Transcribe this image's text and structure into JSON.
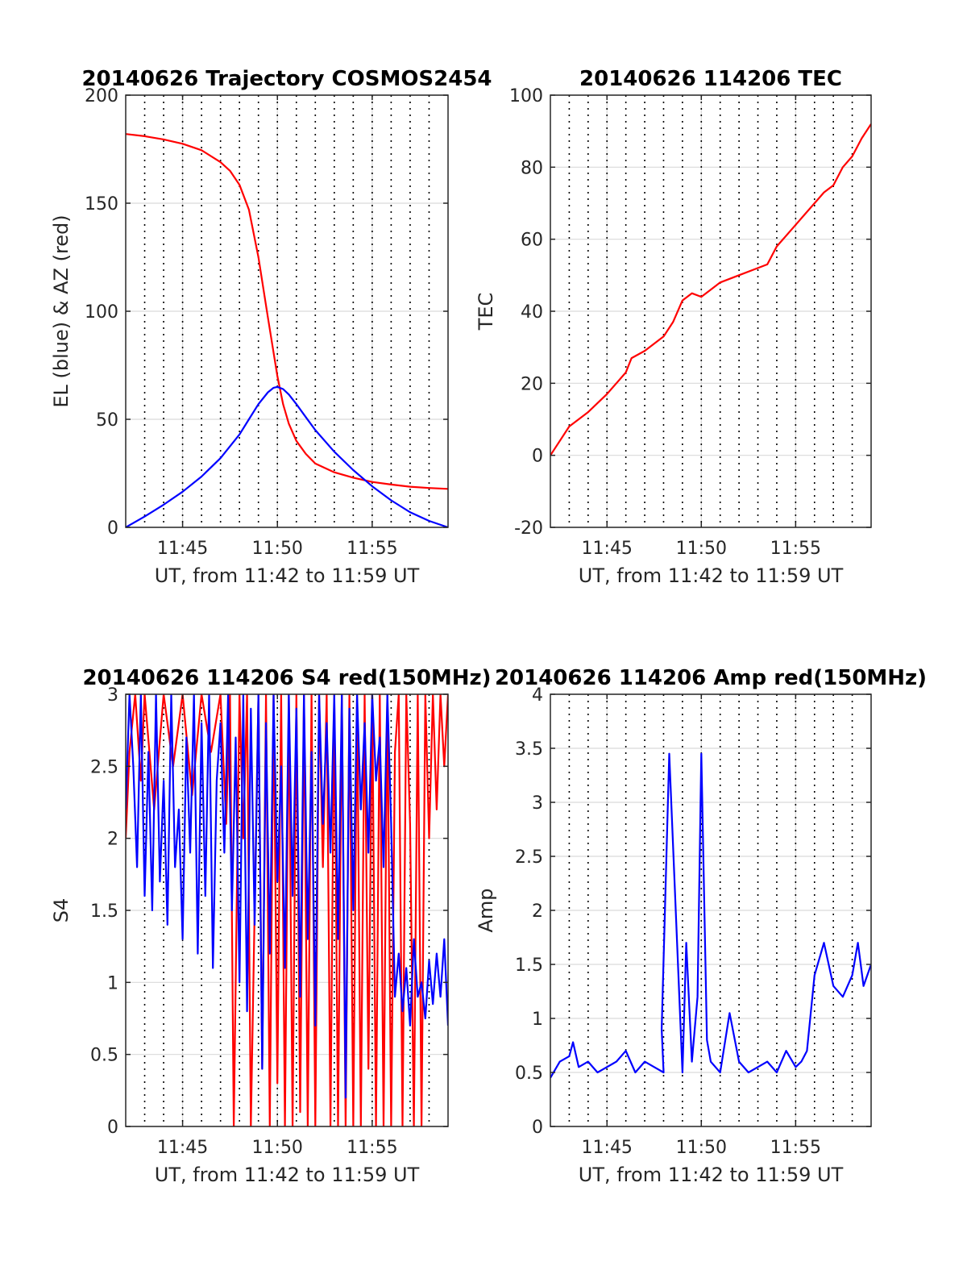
{
  "colors": {
    "red": "#ff0000",
    "blue": "#0000ff",
    "grid": "#d9d9d9",
    "axis": "#262626"
  },
  "chart_data": [
    {
      "type": "line",
      "title": "20140626 Trajectory COSMOS2454",
      "xlabel": "UT, from 11:42 to 11:59 UT",
      "ylabel": "EL (blue) & AZ (red)",
      "xlim": [
        0,
        17
      ],
      "ylim": [
        0,
        200
      ],
      "xticks": [
        3,
        8,
        13
      ],
      "xtick_labels": [
        "11:45",
        "11:50",
        "11:55"
      ],
      "yticks": [
        0,
        50,
        100,
        150,
        200
      ],
      "ytick_labels": [
        "0",
        "50",
        "100",
        "150",
        "200"
      ],
      "grid": true,
      "series": [
        {
          "color": "red",
          "x": [
            0,
            1,
            2,
            3,
            4,
            5,
            5.5,
            6,
            6.5,
            7,
            7.5,
            8,
            8.3,
            8.6,
            9,
            9.5,
            10,
            11,
            12,
            13,
            14,
            15,
            16,
            17
          ],
          "y": [
            182,
            181,
            179.5,
            177.5,
            174.5,
            169,
            165,
            158.5,
            147,
            125,
            97,
            70,
            57,
            48,
            40,
            34,
            29.5,
            25.5,
            23,
            21,
            19.8,
            18.8,
            18.2,
            17.8
          ]
        },
        {
          "color": "blue",
          "x": [
            0,
            1,
            2,
            3,
            4,
            5,
            6,
            6.5,
            7,
            7.5,
            7.8,
            8,
            8.3,
            8.6,
            9,
            9.5,
            10,
            11,
            12,
            13,
            14,
            15,
            16,
            17
          ],
          "y": [
            0,
            5,
            10.5,
            16.5,
            23.5,
            32,
            43,
            50,
            57,
            62.5,
            64.6,
            65,
            64,
            61.5,
            57,
            51,
            45,
            35,
            26.5,
            19,
            12.5,
            7,
            3,
            0
          ]
        }
      ]
    },
    {
      "type": "line",
      "title": "20140626 114206 TEC",
      "xlabel": "UT, from 11:42 to 11:59 UT",
      "ylabel": "TEC",
      "xlim": [
        0,
        17
      ],
      "ylim": [
        -20,
        100
      ],
      "xticks": [
        3,
        8,
        13
      ],
      "xtick_labels": [
        "11:45",
        "11:50",
        "11:55"
      ],
      "yticks": [
        -20,
        0,
        20,
        40,
        60,
        80,
        100
      ],
      "ytick_labels": [
        "-20",
        "0",
        "20",
        "40",
        "60",
        "80",
        "100"
      ],
      "grid": true,
      "series": [
        {
          "color": "red",
          "x": [
            0,
            1,
            2,
            3,
            3.5,
            4,
            4.3,
            5,
            6,
            6.5,
            7,
            7.5,
            8,
            8.5,
            9,
            10,
            11,
            11.5,
            12,
            13,
            13.5,
            14,
            14.5,
            15,
            15.5,
            16,
            16.5,
            17
          ],
          "y": [
            0,
            8,
            12,
            17,
            20,
            23,
            27,
            29,
            33,
            37,
            43,
            45,
            44,
            46,
            48,
            50,
            52,
            53,
            58,
            64,
            67,
            70,
            73,
            75,
            80,
            83,
            88,
            92
          ]
        }
      ]
    },
    {
      "type": "line",
      "title": "20140626 114206 S4 red(150MHz)",
      "xlabel": "UT, from 11:42 to 11:59 UT",
      "ylabel": "S4",
      "xlim": [
        0,
        17
      ],
      "ylim": [
        0,
        3
      ],
      "xticks": [
        3,
        8,
        13
      ],
      "xtick_labels": [
        "11:45",
        "11:50",
        "11:55"
      ],
      "yticks": [
        0,
        0.5,
        1,
        1.5,
        2,
        2.5,
        3
      ],
      "ytick_labels": [
        "0",
        "0.5",
        "1",
        "1.5",
        "2",
        "2.5",
        "3"
      ],
      "grid": true,
      "series": [
        {
          "color": "red",
          "x": [
            0,
            0.2,
            0.5,
            0.8,
            1,
            1.5,
            2,
            2.5,
            3,
            3.5,
            4,
            4.5,
            5,
            5.3,
            5.5,
            5.7,
            6,
            6.2,
            6.4,
            6.6,
            7,
            7.2,
            7.4,
            7.6,
            7.8,
            8,
            8.2,
            8.4,
            8.6,
            8.8,
            9,
            9.2,
            9.4,
            9.6,
            9.8,
            10,
            10.2,
            10.4,
            10.6,
            10.8,
            11,
            11.2,
            11.4,
            11.6,
            11.8,
            12,
            12.2,
            12.4,
            12.6,
            12.8,
            13,
            13.2,
            13.4,
            13.6,
            13.8,
            14,
            14.2,
            14.4,
            14.6,
            14.8,
            15,
            15.2,
            15.4,
            15.6,
            15.8,
            16,
            16.2,
            16.4,
            16.6,
            16.8,
            17
          ],
          "y": [
            2,
            2.6,
            3,
            2.4,
            3,
            2.2,
            3,
            2.5,
            3,
            2.3,
            3,
            2.6,
            3,
            2.1,
            3,
            0,
            3,
            2,
            3,
            0,
            3,
            0.4,
            3,
            0,
            3,
            0.3,
            3,
            0,
            3,
            0,
            3,
            0.1,
            3,
            0,
            3,
            0,
            3,
            1.8,
            3,
            0,
            3,
            0,
            3,
            0,
            3,
            0,
            3,
            0,
            3,
            0.4,
            3,
            0,
            3,
            0,
            3,
            0,
            2.6,
            3,
            0,
            3,
            2.1,
            0,
            3,
            0,
            3,
            2,
            3,
            2.2,
            3,
            2.5,
            3
          ]
        },
        {
          "color": "blue",
          "x": [
            0,
            0.2,
            0.4,
            0.6,
            0.8,
            1,
            1.2,
            1.4,
            1.6,
            1.8,
            2,
            2.2,
            2.4,
            2.6,
            2.8,
            3,
            3.2,
            3.4,
            3.6,
            3.8,
            4,
            4.2,
            4.4,
            4.6,
            4.8,
            5,
            5.2,
            5.4,
            5.6,
            5.8,
            6,
            6.2,
            6.4,
            6.6,
            6.8,
            7,
            7.2,
            7.4,
            7.6,
            7.8,
            8,
            8.2,
            8.4,
            8.6,
            8.8,
            9,
            9.2,
            9.4,
            9.6,
            9.8,
            10,
            10.2,
            10.4,
            10.6,
            10.8,
            11,
            11.2,
            11.4,
            11.6,
            11.8,
            12,
            12.2,
            12.4,
            12.6,
            12.8,
            13,
            13.2,
            13.4,
            13.6,
            13.8,
            14,
            14.2,
            14.4,
            14.6,
            14.8,
            15,
            15.2,
            15.4,
            15.6,
            15.8,
            16,
            16.2,
            16.4,
            16.6,
            16.8,
            17
          ],
          "y": [
            2.2,
            3,
            2.5,
            1.8,
            3,
            1.6,
            2.6,
            1.5,
            3,
            1.7,
            2.4,
            1.4,
            3,
            1.8,
            2.2,
            1.3,
            2.7,
            1.9,
            3,
            1.2,
            2.8,
            1.6,
            3,
            1.1,
            2.4,
            2.8,
            1.9,
            3,
            1.5,
            2.7,
            1,
            3,
            0.8,
            2.9,
            1.4,
            3,
            0.4,
            2.8,
            1.2,
            3,
            1.7,
            2.5,
            1.1,
            3,
            1.6,
            2.9,
            0.9,
            3,
            1.3,
            2.6,
            0.7,
            3,
            2.1,
            2.8,
            1.9,
            3,
            1.3,
            3,
            0.2,
            2.9,
            1.5,
            3,
            2.2,
            2.8,
            1.9,
            3,
            2.4,
            2.7,
            1.8,
            3,
            2.1,
            0.9,
            1.2,
            0.8,
            1.1,
            0.7,
            1.3,
            0.9,
            1,
            0.75,
            1.15,
            0.85,
            1.2,
            0.9,
            1.3,
            0.7
          ]
        }
      ]
    },
    {
      "type": "line",
      "title": "20140626 114206 Amp red(150MHz)",
      "xlabel": "UT, from 11:42 to 11:59 UT",
      "ylabel": "Amp",
      "xlim": [
        0,
        17
      ],
      "ylim": [
        0,
        4
      ],
      "xticks": [
        3,
        8,
        13
      ],
      "xtick_labels": [
        "11:45",
        "11:50",
        "11:55"
      ],
      "yticks": [
        0,
        0.5,
        1,
        1.5,
        2,
        2.5,
        3,
        3.5,
        4
      ],
      "ytick_labels": [
        "0",
        "0.5",
        "1",
        "1.5",
        "2",
        "2.5",
        "3",
        "3.5",
        "4"
      ],
      "grid": true,
      "series": [
        {
          "color": "blue",
          "x": [
            0,
            0.5,
            1,
            1.2,
            1.5,
            2,
            2.5,
            3,
            3.5,
            4,
            4.5,
            5,
            5.5,
            6,
            5.9,
            6.3,
            7,
            7.2,
            7.5,
            7.8,
            8,
            8.3,
            8.5,
            9,
            9.5,
            10,
            10.5,
            11,
            11.5,
            12,
            12.5,
            13,
            13.3,
            13.6,
            14,
            14.5,
            15,
            15.5,
            16,
            16.3,
            16.6,
            17
          ],
          "y": [
            0.45,
            0.6,
            0.65,
            0.78,
            0.55,
            0.6,
            0.5,
            0.55,
            0.6,
            0.7,
            0.5,
            0.6,
            0.55,
            0.5,
            0.9,
            3.45,
            0.5,
            1.7,
            0.6,
            1.2,
            3.45,
            0.8,
            0.6,
            0.5,
            1.05,
            0.6,
            0.5,
            0.55,
            0.6,
            0.5,
            0.7,
            0.55,
            0.6,
            0.7,
            1.4,
            1.7,
            1.3,
            1.2,
            1.4,
            1.7,
            1.3,
            1.5
          ]
        }
      ]
    }
  ]
}
